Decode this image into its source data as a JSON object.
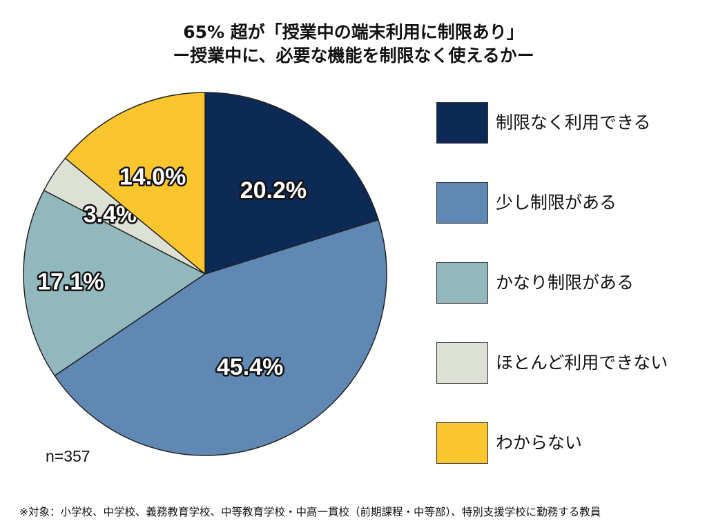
{
  "chart_data": {
    "type": "pie",
    "title_line1": "65% 超が「授業中の端末利用に制限あり」",
    "title_line2": "ー授業中に、必要な機能を制限なく使えるかー",
    "slices": [
      {
        "name": "制限なく利用できる",
        "value": 20.2,
        "label": "20.2%",
        "color": "#0d2a57"
      },
      {
        "name": "少し制限がある",
        "value": 45.4,
        "label": "45.4%",
        "color": "#5f88b4"
      },
      {
        "name": "かなり制限がある",
        "value": 17.1,
        "label": "17.1%",
        "color": "#92b8bd"
      },
      {
        "name": "ほとんど利用できない",
        "value": 3.4,
        "label": "3.4%",
        "color": "#dde0d4"
      },
      {
        "name": "わからない",
        "value": 14.0,
        "label": "14.0%",
        "color": "#fbc52d"
      }
    ],
    "start": "top",
    "direction": "clockwise",
    "legend_position": "right"
  },
  "sample_size": "n=357",
  "footnote": "※対象：小学校、中学校、義務教育学校、中等教育学校・中高一貫校（前期課程・中等部）、特別支援学校に勤務する教員"
}
